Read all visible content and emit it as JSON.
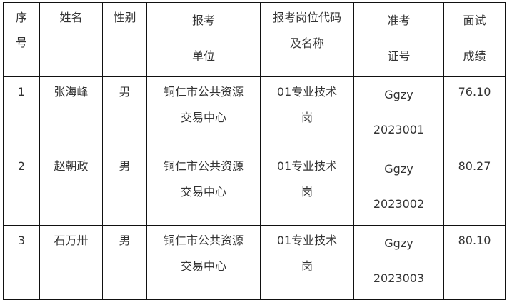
{
  "headers": [
    [
      "序",
      "号"
    ],
    [
      "姓名"
    ],
    [
      "性别"
    ],
    [
      "报考",
      "单位"
    ],
    [
      "报考岗位代码",
      "及名称"
    ],
    [
      "准考",
      "证号"
    ],
    [
      "面试",
      "成绩"
    ]
  ],
  "rows": [
    {
      "no": "1",
      "name": "张海峰",
      "gender": "男",
      "unit": [
        "铜仁市公共资源",
        "交易中心"
      ],
      "post": [
        "01专业技术",
        "岗"
      ],
      "exam_id": [
        "Ggzy",
        "2023001"
      ],
      "score": "76.10"
    },
    {
      "no": "2",
      "name": "赵朝政",
      "gender": "男",
      "unit": [
        "铜仁市公共资源",
        "交易中心"
      ],
      "post": [
        "01专业技术",
        "岗"
      ],
      "exam_id": [
        "Ggzy",
        "2023002"
      ],
      "score": "80.27"
    },
    {
      "no": "3",
      "name": "石万卅",
      "gender": "男",
      "unit": [
        "铜仁市公共资源",
        "交易中心"
      ],
      "post": [
        "01专业技术",
        "岗"
      ],
      "exam_id": [
        "Ggzy",
        "2023003"
      ],
      "score": "80.10"
    }
  ]
}
